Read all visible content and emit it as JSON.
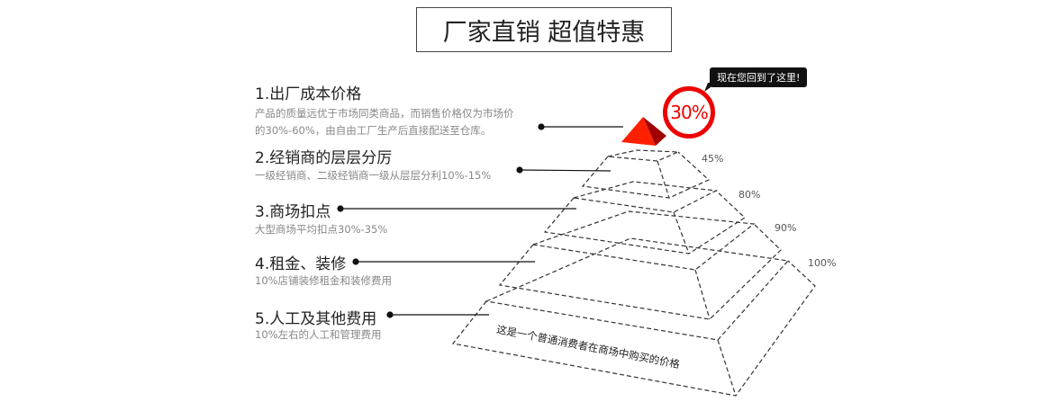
{
  "title": "厂家直销 超值特惠",
  "items": [
    {
      "heading": "1.出厂成本价格",
      "desc": [
        "产品的质量远优于市场同类商品，而销售价格仅为市场价",
        "的30%-60%，由自由工厂生产后直接配送至仓库。"
      ]
    },
    {
      "heading": "2.经销商的层层分厉",
      "desc": [
        "一级经销商、二级经销商一级从层层分利10%-15%"
      ]
    },
    {
      "heading": "3.商场扣点",
      "desc": [
        "大型商场平均扣点30%-35%"
      ]
    },
    {
      "heading": "4.租金、装修",
      "desc": [
        "10%店铺装修租金和装修费用"
      ]
    },
    {
      "heading": "5.人工及其他费用",
      "desc": [
        "10%左右的人工和管理费用"
      ]
    }
  ],
  "layers": [
    "45%",
    "80%",
    "90%",
    "100%"
  ],
  "callout": "现在您回到了这里!",
  "badge": "30%",
  "base_note": "这是一个普通消费者在商场中购买的价格",
  "colors": {
    "accent": "#e00000"
  }
}
